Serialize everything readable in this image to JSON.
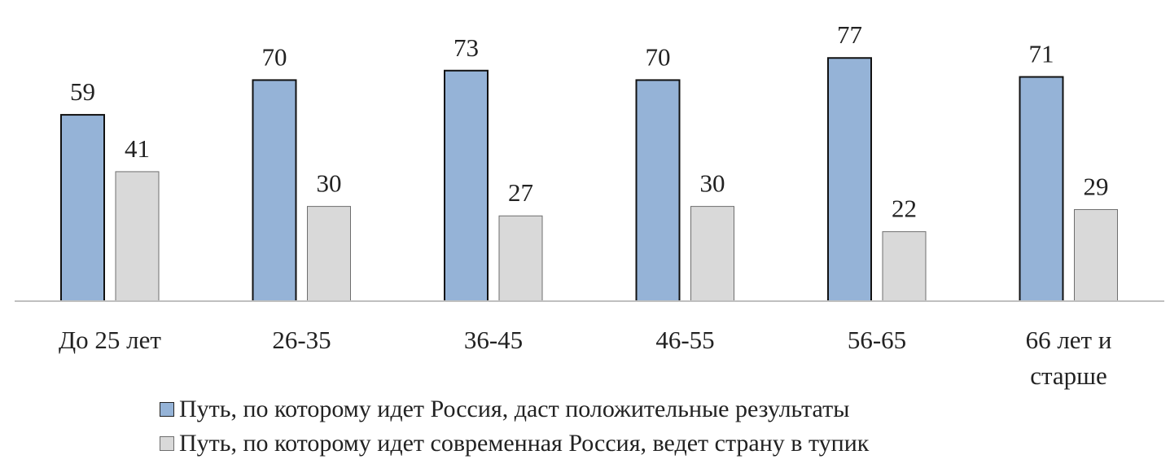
{
  "chart_data": {
    "type": "bar",
    "categories": [
      "До 25 лет",
      "26-35",
      "36-45",
      "46-55",
      "56-65",
      "66 лет и старше"
    ],
    "series": [
      {
        "name": "Путь, по которому идет Россия, даст положительные результаты",
        "values": [
          59,
          70,
          73,
          70,
          77,
          71
        ],
        "color": "#95B3D7",
        "bordered": true
      },
      {
        "name": "Путь, по которому идет современная Россия, ведет страну в тупик",
        "values": [
          41,
          30,
          27,
          30,
          22,
          29
        ],
        "color": "#D9D9D9",
        "bordered": false
      }
    ],
    "title": "",
    "xlabel": "",
    "ylabel": "",
    "ylim": [
      0,
      80
    ],
    "grid": false,
    "legend": "bottom",
    "data_labels": true
  }
}
